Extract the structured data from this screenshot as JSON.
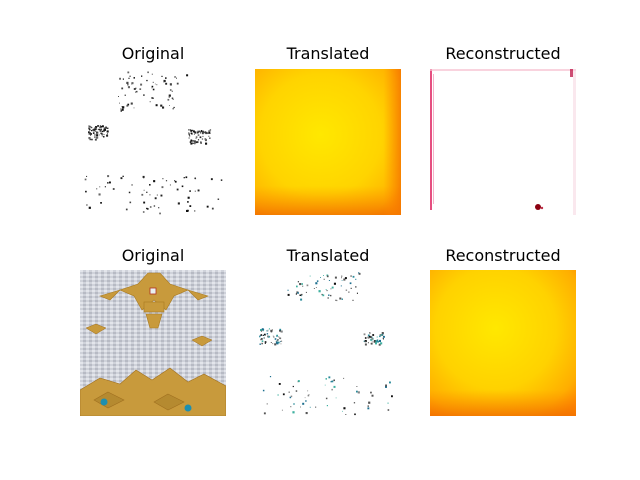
{
  "figure": {
    "rows": [
      {
        "panels": [
          {
            "title": "Original",
            "kind": "sparse-dots"
          },
          {
            "title": "Translated",
            "kind": "yellow-gradient"
          },
          {
            "title": "Reconstructed",
            "kind": "white-pink-edges"
          }
        ]
      },
      {
        "panels": [
          {
            "title": "Original",
            "kind": "fabric-pattern"
          },
          {
            "title": "Translated",
            "kind": "sparse-color-dots"
          },
          {
            "title": "Reconstructed",
            "kind": "yellow-gradient"
          }
        ]
      }
    ]
  },
  "colors": {
    "yellow_core": "#ffe600",
    "orange_edge": "#ff8a00",
    "gold": "#c89a3c",
    "fabric_bg": "#c9ccd6",
    "pink_edge": "#e0306a",
    "teal_accent": "#1d8fb0"
  }
}
